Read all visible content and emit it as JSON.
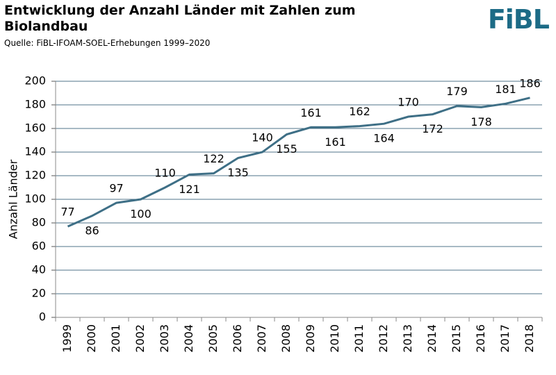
{
  "logo": "FiBL",
  "chart_data": {
    "type": "line",
    "title": "Entwicklung der Anzahl Länder mit Zahlen zum Biolandbau",
    "subtitle": "Quelle: FiBL-IFOAM-SOEL-Erhebungen 1999–2020",
    "y_label": "Anzahl Länder",
    "categories": [
      "1999",
      "2000",
      "2001",
      "2002",
      "2003",
      "2004",
      "2005",
      "2006",
      "2007",
      "2008",
      "2009",
      "2010",
      "2011",
      "2012",
      "2013",
      "2014",
      "2015",
      "2016",
      "2017",
      "2018"
    ],
    "values": [
      77,
      86,
      97,
      100,
      110,
      121,
      122,
      135,
      140,
      155,
      161,
      161,
      162,
      164,
      170,
      172,
      179,
      178,
      181,
      186
    ],
    "color": "#3e6f86",
    "ylim": [
      0,
      200
    ],
    "yticks": [
      0,
      20,
      40,
      60,
      80,
      100,
      120,
      140,
      160,
      180,
      200
    ],
    "grid": true
  }
}
